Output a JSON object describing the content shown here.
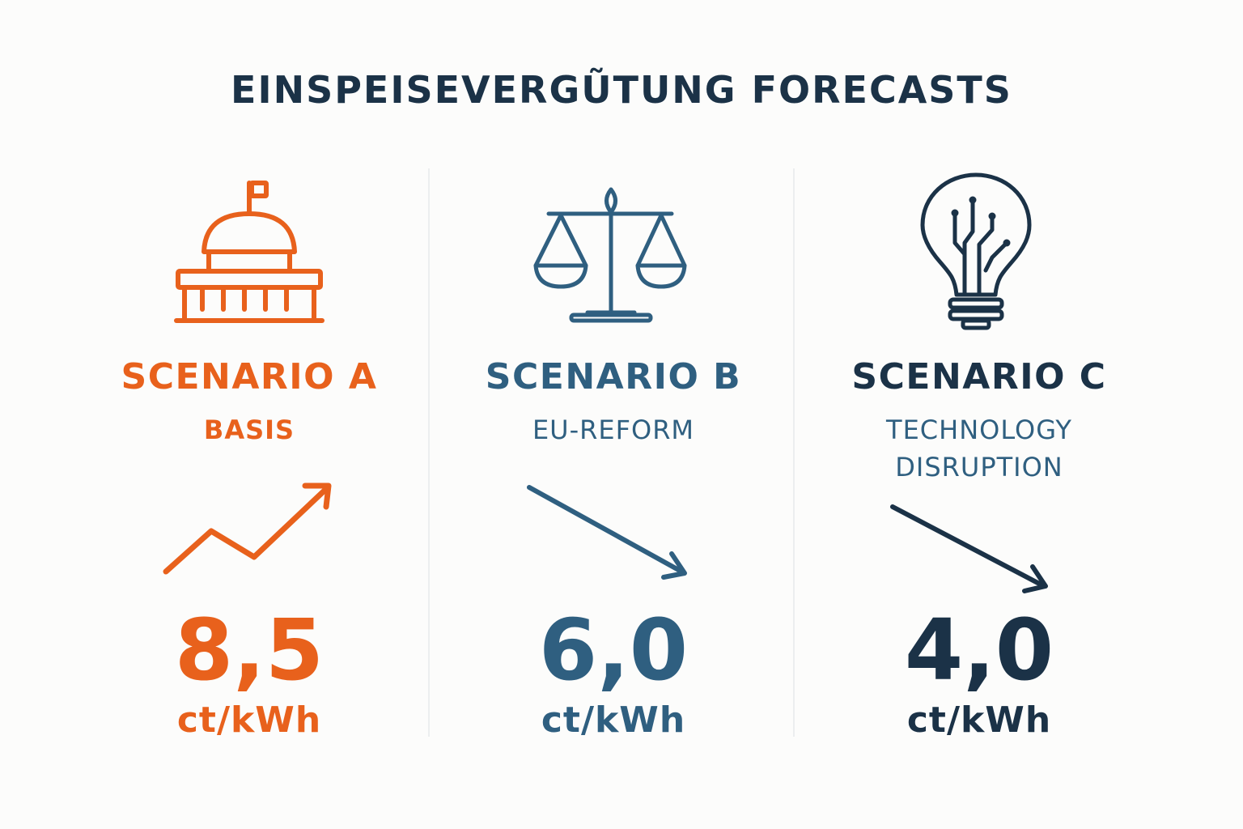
{
  "title": "EINSPEISEVERGŨTUNG FORECASTS",
  "colors": {
    "title": "#1b3247",
    "scenario_a": "#e8611c",
    "scenario_b": "#2f5f80",
    "scenario_c": "#1b3247",
    "divider": "#eceeef",
    "background": "#fcfcfb"
  },
  "scenarios": [
    {
      "name": "SCENARIO A",
      "subtitle": "BASIS",
      "icon": "capitol-building-icon",
      "trend": "up",
      "trend_icon": "trend-up-arrow-icon",
      "value": "8,5",
      "unit": "ct/kWh",
      "color": "#e8611c"
    },
    {
      "name": "SCENARIO B",
      "subtitle": "EU-REFORM",
      "icon": "balance-scale-icon",
      "trend": "down",
      "trend_icon": "trend-down-arrow-icon",
      "value": "6,0",
      "unit": "ct/kWh",
      "color": "#2f5f80"
    },
    {
      "name": "SCENARIO C",
      "subtitle_lines": [
        "TECHNOLOGY",
        "DISRUPTION"
      ],
      "icon": "circuit-lightbulb-icon",
      "trend": "down",
      "trend_icon": "trend-down-arrow-icon",
      "value": "4,0",
      "unit": "ct/kWh",
      "color": "#1b3247"
    }
  ]
}
